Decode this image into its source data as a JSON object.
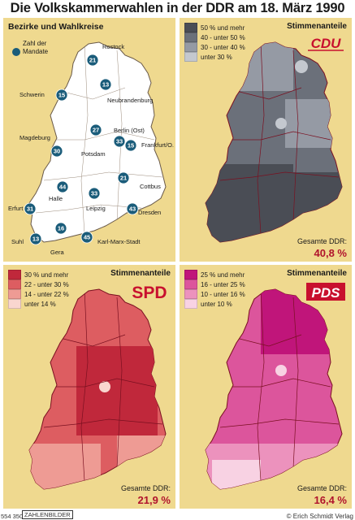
{
  "title": "Die Volkskammerwahlen in der DDR am 18. März 1990",
  "panels": {
    "bezirke": {
      "heading": "Bezirke und Wahlkreise",
      "legend_label": "Zahl der Mandate",
      "marker_color": "#1a5c7a",
      "cities": [
        {
          "name": "Rostock",
          "seats": "21"
        },
        {
          "name": "Schwerin",
          "seats": "15"
        },
        {
          "name": "Neubrandenburg",
          "seats": "13"
        },
        {
          "name": "Magdeburg",
          "seats": "30"
        },
        {
          "name": "Berlin (Ost)",
          "seats": "27"
        },
        {
          "name": "Potsdam",
          "seats": "33"
        },
        {
          "name": "Frankfurt/O.",
          "seats": "15"
        },
        {
          "name": "Cottbus",
          "seats": "21"
        },
        {
          "name": "Halle",
          "seats": "44"
        },
        {
          "name": "Leipzig",
          "seats": "33"
        },
        {
          "name": "Dresden",
          "seats": "43"
        },
        {
          "name": "Erfurt",
          "seats": "31"
        },
        {
          "name": "Suhl",
          "seats": "13"
        },
        {
          "name": "Gera",
          "seats": "16"
        },
        {
          "name": "Karl-Marx-Stadt",
          "seats": "45"
        }
      ]
    },
    "cdu": {
      "heading": "Stimmenanteile",
      "party": "CDU",
      "legend": [
        "50 % und mehr",
        "40 - unter 50 %",
        "30 - unter 40 %",
        "unter 30 %"
      ],
      "colors": [
        "#4a4d55",
        "#6b707a",
        "#959aa4",
        "#c4c8cf"
      ],
      "logo_color": "#c8102e",
      "total_label": "Gesamte DDR:",
      "total_value": "40,8 %"
    },
    "spd": {
      "heading": "Stimmenanteile",
      "party": "SPD",
      "legend": [
        "30 % und mehr",
        "22 - unter 30 %",
        "14 - unter 22 %",
        "unter 14 %"
      ],
      "colors": [
        "#c0283b",
        "#dd5d61",
        "#ee9b94",
        "#f9d6cf"
      ],
      "logo_color": "#c8102e",
      "total_label": "Gesamte DDR:",
      "total_value": "21,9 %"
    },
    "pds": {
      "heading": "Stimmenanteile",
      "party": "PDS",
      "legend": [
        "25 % und mehr",
        "16 - unter 25 %",
        "10 - unter 16 %",
        "unter 10 %"
      ],
      "colors": [
        "#c0157a",
        "#dc559c",
        "#ec92bd",
        "#f8d2e3"
      ],
      "logo_color": "#c8102e",
      "total_label": "Gesamte DDR:",
      "total_value": "16,4 %"
    }
  },
  "footer": {
    "code": "554 350",
    "brand": "ZAHLENBILDER",
    "copyright": "© Erich Schmidt Verlag"
  }
}
